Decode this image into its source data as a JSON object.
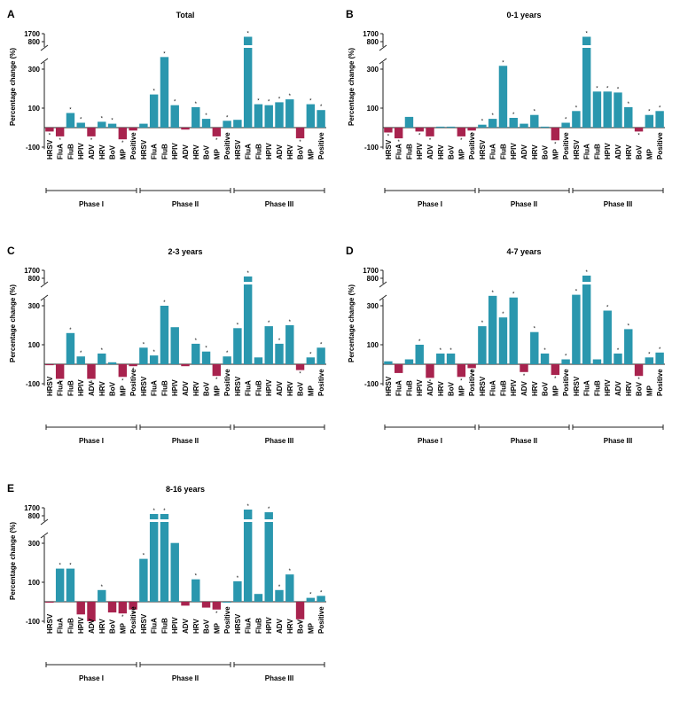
{
  "figure": {
    "phase_labels": [
      "Phase I",
      "Phase II",
      "Phase III"
    ],
    "categories": [
      "HRSV",
      "FluA",
      "FluB",
      "HPIV",
      "ADV",
      "HRV",
      "BoV",
      "MP",
      "Positive"
    ],
    "colors": {
      "positive": "#2a97ae",
      "negative": "#a8234e",
      "axis": "#222222"
    }
  },
  "chart_data": [
    {
      "type": "bar",
      "panel": "A",
      "title": "Total",
      "ylabel": "Percentage change (%)",
      "yticks": [
        "1700",
        "800",
        "300",
        "100",
        "-100"
      ],
      "ylim": [
        -100,
        1700
      ],
      "axis_break": [
        300,
        800
      ],
      "phases": [
        {
          "name": "Phase I",
          "values": [
            -20,
            -45,
            75,
            25,
            -45,
            30,
            20,
            -60,
            -15
          ],
          "sig": [
            true,
            true,
            true,
            true,
            true,
            true,
            true,
            true,
            false
          ]
        },
        {
          "name": "Phase II",
          "values": [
            20,
            170,
            520,
            115,
            -10,
            105,
            45,
            -45,
            35
          ],
          "sig": [
            false,
            true,
            true,
            true,
            false,
            true,
            true,
            true,
            true
          ]
        },
        {
          "name": "Phase III",
          "values": [
            40,
            1350,
            120,
            115,
            130,
            145,
            -55,
            120,
            90
          ],
          "sig": [
            false,
            true,
            true,
            true,
            true,
            true,
            true,
            true,
            true
          ]
        }
      ]
    },
    {
      "type": "bar",
      "panel": "B",
      "title": "0-1 years",
      "ylabel": "Percentage change (%)",
      "yticks": [
        "1700",
        "800",
        "300",
        "100",
        "-100"
      ],
      "ylim": [
        -100,
        1700
      ],
      "axis_break": [
        300,
        800
      ],
      "phases": [
        {
          "name": "Phase I",
          "values": [
            -25,
            -55,
            55,
            -20,
            -45,
            5,
            5,
            -45,
            -15
          ],
          "sig": [
            true,
            true,
            false,
            true,
            true,
            false,
            false,
            true,
            true
          ]
        },
        {
          "name": "Phase II",
          "values": [
            15,
            45,
            360,
            50,
            20,
            65,
            5,
            -65,
            25
          ],
          "sig": [
            true,
            true,
            true,
            true,
            false,
            true,
            false,
            true,
            true
          ]
        },
        {
          "name": "Phase III",
          "values": [
            85,
            1350,
            185,
            185,
            180,
            105,
            -20,
            65,
            85
          ],
          "sig": [
            true,
            true,
            true,
            true,
            true,
            true,
            true,
            true,
            true
          ]
        }
      ]
    },
    {
      "type": "bar",
      "panel": "C",
      "title": "2-3 years",
      "ylabel": "Percentage change (%)",
      "yticks": [
        "1700",
        "800",
        "300",
        "100",
        "-100"
      ],
      "ylim": [
        -100,
        1700
      ],
      "axis_break": [
        300,
        800
      ],
      "phases": [
        {
          "name": "Phase I",
          "values": [
            -5,
            -75,
            160,
            40,
            -75,
            55,
            10,
            -65,
            -10
          ],
          "sig": [
            false,
            true,
            true,
            true,
            true,
            true,
            false,
            true,
            true
          ]
        },
        {
          "name": "Phase II",
          "values": [
            85,
            45,
            300,
            190,
            -10,
            105,
            65,
            -60,
            40
          ],
          "sig": [
            true,
            true,
            true,
            false,
            false,
            true,
            true,
            true,
            true
          ]
        },
        {
          "name": "Phase III",
          "values": [
            185,
            1000,
            35,
            195,
            105,
            200,
            -30,
            35,
            85
          ],
          "sig": [
            true,
            true,
            false,
            true,
            true,
            true,
            true,
            true,
            true
          ]
        }
      ]
    },
    {
      "type": "bar",
      "panel": "D",
      "title": "4-7 years",
      "ylabel": "Percentage change (%)",
      "yticks": [
        "1700",
        "800",
        "300",
        "100",
        "-100"
      ],
      "ylim": [
        -100,
        1700
      ],
      "axis_break": [
        300,
        800
      ],
      "phases": [
        {
          "name": "Phase I",
          "values": [
            15,
            -45,
            25,
            100,
            -70,
            55,
            55,
            -65,
            -20
          ],
          "sig": [
            false,
            false,
            false,
            true,
            true,
            true,
            true,
            true,
            true
          ]
        },
        {
          "name": "Phase II",
          "values": [
            195,
            480,
            240,
            450,
            -40,
            165,
            55,
            -55,
            25
          ],
          "sig": [
            true,
            true,
            true,
            true,
            true,
            true,
            true,
            true,
            true
          ]
        },
        {
          "name": "Phase III",
          "values": [
            500,
            1100,
            25,
            275,
            55,
            180,
            -60,
            35,
            60
          ],
          "sig": [
            true,
            true,
            false,
            true,
            true,
            true,
            true,
            true,
            true
          ]
        }
      ]
    },
    {
      "type": "bar",
      "panel": "E",
      "title": "8-16 years",
      "ylabel": "Percentage change (%)",
      "yticks": [
        "1700",
        "800",
        "300",
        "100",
        "-100"
      ],
      "ylim": [
        -100,
        1700
      ],
      "axis_break": [
        300,
        800
      ],
      "phases": [
        {
          "name": "Phase I",
          "values": [
            -5,
            170,
            170,
            -65,
            -100,
            60,
            -55,
            -60,
            -40
          ],
          "sig": [
            false,
            true,
            true,
            false,
            true,
            true,
            false,
            true,
            true
          ]
        },
        {
          "name": "Phase II",
          "values": [
            220,
            1000,
            1000,
            305,
            -20,
            115,
            -30,
            -40,
            0
          ],
          "sig": [
            true,
            true,
            true,
            false,
            false,
            true,
            false,
            true,
            false
          ]
        },
        {
          "name": "Phase III",
          "values": [
            105,
            1500,
            40,
            1200,
            60,
            140,
            -90,
            20,
            30
          ],
          "sig": [
            true,
            true,
            false,
            true,
            true,
            true,
            true,
            true,
            true
          ]
        }
      ]
    }
  ]
}
